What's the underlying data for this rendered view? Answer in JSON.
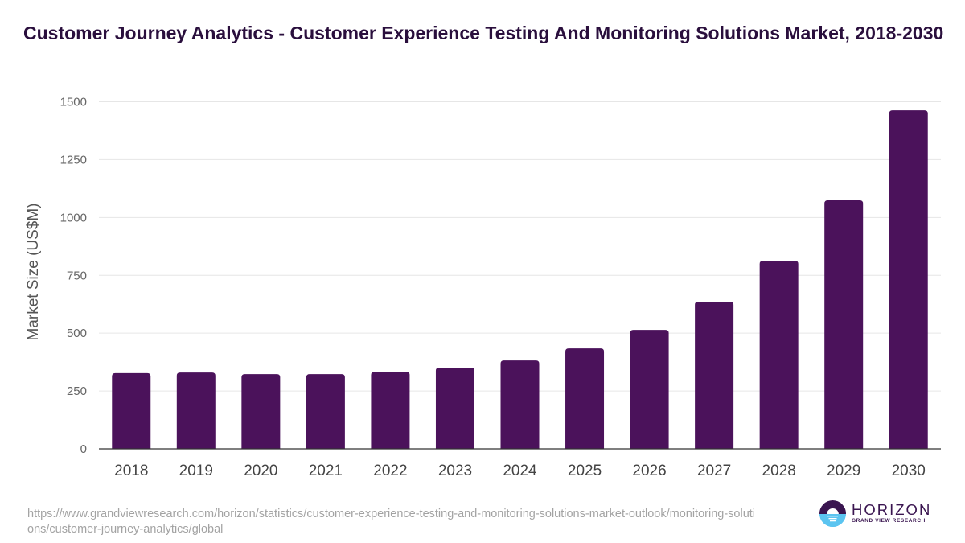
{
  "title": "Customer Journey Analytics - Customer Experience Testing And Monitoring Solutions Market, 2018-2030",
  "source_url": "https://www.grandviewresearch.com/horizon/statistics/customer-experience-testing-and-monitoring-solutions-market-outlook/monitoring-solutions/customer-journey-analytics/global",
  "logo": {
    "name": "HORIZON",
    "subtitle": "GRAND VIEW RESEARCH",
    "colors": {
      "dark": "#3a1550",
      "light": "#5bc4f0"
    }
  },
  "colors": {
    "bar": "#4b125b",
    "title": "#2a0f3d",
    "grid": "#e6e6e6",
    "axis": "#333333",
    "tick": "#666666"
  },
  "chart_data": {
    "type": "bar",
    "title": "Customer Journey Analytics - Customer Experience Testing And Monitoring Solutions Market, 2018-2030",
    "xlabel": "",
    "ylabel": "Market Size (US$M)",
    "ylim": [
      0,
      1500
    ],
    "yticks": [
      0,
      250,
      500,
      750,
      1000,
      1250,
      1500
    ],
    "grid": true,
    "legend": "none",
    "categories": [
      "2018",
      "2019",
      "2020",
      "2021",
      "2022",
      "2023",
      "2024",
      "2025",
      "2026",
      "2027",
      "2028",
      "2029",
      "2030"
    ],
    "series": [
      {
        "name": "Market Size (US$M)",
        "values": [
          327,
          330,
          323,
          323,
          333,
          351,
          382,
          434,
          514,
          636,
          813,
          1074,
          1463
        ]
      }
    ]
  }
}
